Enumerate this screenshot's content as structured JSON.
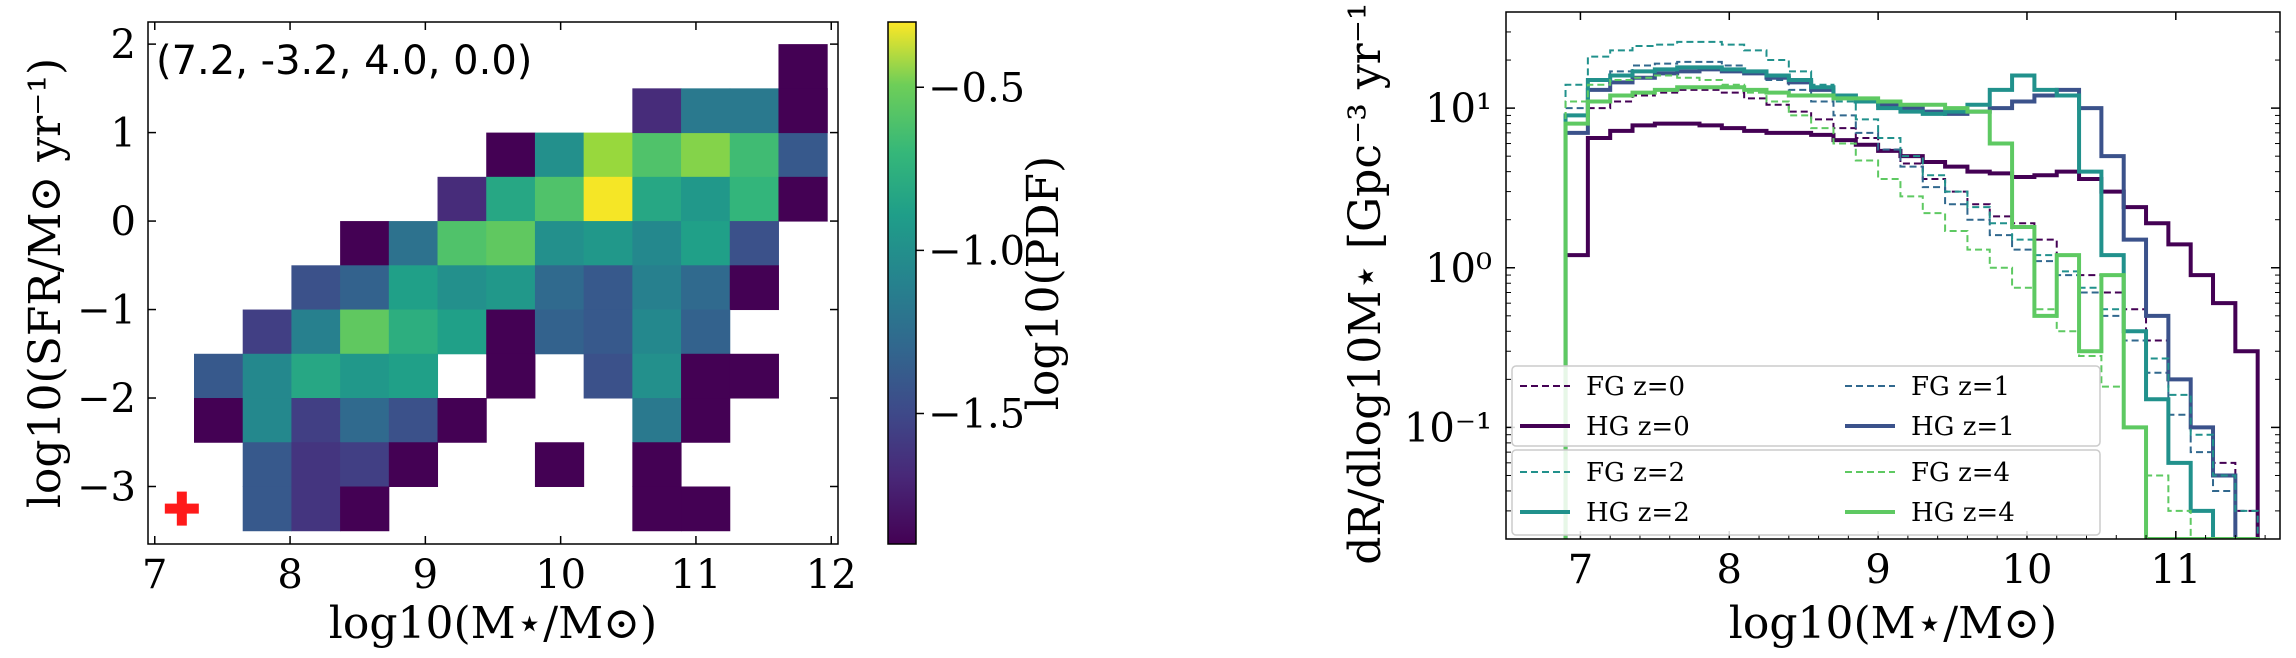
{
  "chart_data": [
    {
      "type": "heatmap",
      "annotation": "(7.2, -3.2, 4.0, 0.0)",
      "xlabel": "log10(M⋆/M⊙)",
      "ylabel": "log10(SFR/M⊙ yr⁻¹)",
      "xlim": [
        6.95,
        12.05
      ],
      "ylim": [
        -3.65,
        2.25
      ],
      "xticks": [
        "7",
        "8",
        "9",
        "10",
        "11",
        "12"
      ],
      "yticks": [
        "−3",
        "−2",
        "−1",
        "0",
        "1",
        "2"
      ],
      "colorbar_label": "log10(PDF)",
      "colorbar_ticks": [
        "−0.5",
        "−1.0",
        "−1.5"
      ],
      "colormap": "viridis",
      "clim": [
        -1.9,
        -0.3
      ],
      "marker": {
        "x": 7.2,
        "y": -3.25,
        "symbol": "plus",
        "color": "#ff1a1a"
      },
      "bin_width": 0.36,
      "bin_height": 0.5,
      "cells": [
        [
          11.79,
          1.75,
          -1.9
        ],
        [
          11.79,
          1.25,
          -1.9
        ],
        [
          9.63,
          0.75,
          -1.9
        ],
        [
          9.99,
          0.75,
          -1.1
        ],
        [
          10.35,
          0.75,
          -0.55
        ],
        [
          10.71,
          0.75,
          -0.75
        ],
        [
          11.07,
          0.75,
          -0.6
        ],
        [
          11.43,
          0.75,
          -0.8
        ],
        [
          11.79,
          0.75,
          -1.45
        ],
        [
          10.71,
          1.25,
          -1.7
        ],
        [
          11.07,
          1.25,
          -1.25
        ],
        [
          11.43,
          1.25,
          -1.25
        ],
        [
          11.79,
          1.25,
          -1.9
        ],
        [
          9.27,
          0.25,
          -1.7
        ],
        [
          9.63,
          0.25,
          -0.95
        ],
        [
          9.99,
          0.25,
          -0.75
        ],
        [
          10.35,
          0.25,
          -0.32
        ],
        [
          10.71,
          0.25,
          -0.95
        ],
        [
          11.07,
          0.25,
          -1.05
        ],
        [
          11.43,
          0.25,
          -0.85
        ],
        [
          11.79,
          0.25,
          -1.9
        ],
        [
          8.55,
          -0.25,
          -1.9
        ],
        [
          8.91,
          -0.25,
          -1.3
        ],
        [
          9.27,
          -0.25,
          -0.75
        ],
        [
          9.63,
          -0.25,
          -0.7
        ],
        [
          9.99,
          -0.25,
          -1.1
        ],
        [
          10.35,
          -0.25,
          -1.05
        ],
        [
          10.71,
          -0.25,
          -1.15
        ],
        [
          11.07,
          -0.25,
          -1.0
        ],
        [
          11.43,
          -0.25,
          -1.5
        ],
        [
          8.19,
          -0.75,
          -1.5
        ],
        [
          8.55,
          -0.75,
          -1.4
        ],
        [
          8.91,
          -0.75,
          -1.0
        ],
        [
          9.27,
          -0.75,
          -1.1
        ],
        [
          9.63,
          -0.75,
          -1.05
        ],
        [
          9.99,
          -0.75,
          -1.35
        ],
        [
          10.35,
          -0.75,
          -1.45
        ],
        [
          10.71,
          -0.75,
          -1.2
        ],
        [
          11.07,
          -0.75,
          -1.35
        ],
        [
          11.43,
          -0.75,
          -1.9
        ],
        [
          7.83,
          -1.25,
          -1.6
        ],
        [
          8.19,
          -1.25,
          -1.2
        ],
        [
          8.55,
          -1.25,
          -0.7
        ],
        [
          8.91,
          -1.25,
          -0.9
        ],
        [
          9.27,
          -1.25,
          -1.0
        ],
        [
          9.63,
          -1.25,
          -1.9
        ],
        [
          9.99,
          -1.25,
          -1.4
        ],
        [
          10.35,
          -1.25,
          -1.45
        ],
        [
          10.71,
          -1.25,
          -1.15
        ],
        [
          11.07,
          -1.25,
          -1.4
        ],
        [
          7.47,
          -1.75,
          -1.45
        ],
        [
          7.83,
          -1.75,
          -1.15
        ],
        [
          8.19,
          -1.75,
          -0.95
        ],
        [
          8.55,
          -1.75,
          -1.05
        ],
        [
          8.91,
          -1.75,
          -1.0
        ],
        [
          9.63,
          -1.75,
          -1.9
        ],
        [
          10.35,
          -1.75,
          -1.5
        ],
        [
          10.71,
          -1.75,
          -1.1
        ],
        [
          11.07,
          -1.75,
          -1.9
        ],
        [
          11.43,
          -1.75,
          -1.9
        ],
        [
          7.47,
          -2.25,
          -1.9
        ],
        [
          7.83,
          -2.25,
          -1.15
        ],
        [
          8.19,
          -2.25,
          -1.6
        ],
        [
          8.55,
          -2.25,
          -1.35
        ],
        [
          8.91,
          -2.25,
          -1.5
        ],
        [
          9.27,
          -2.25,
          -1.9
        ],
        [
          10.71,
          -2.25,
          -1.25
        ],
        [
          11.07,
          -2.25,
          -1.9
        ],
        [
          7.83,
          -2.75,
          -1.45
        ],
        [
          8.19,
          -2.75,
          -1.65
        ],
        [
          8.55,
          -2.75,
          -1.6
        ],
        [
          8.91,
          -2.75,
          -1.9
        ],
        [
          9.99,
          -2.75,
          -1.9
        ],
        [
          10.71,
          -2.75,
          -1.9
        ],
        [
          7.83,
          -3.25,
          -1.45
        ],
        [
          8.19,
          -3.25,
          -1.65
        ],
        [
          8.55,
          -3.25,
          -1.9
        ],
        [
          10.71,
          -3.25,
          -1.9
        ],
        [
          11.07,
          -3.25,
          -1.9
        ]
      ]
    },
    {
      "type": "line",
      "step": true,
      "yscale": "log",
      "xlabel": "log10(M⋆/M⊙)",
      "ylabel": "dR/dlog10M⋆ [Gpc⁻³ yr⁻¹]",
      "xlim": [
        6.5,
        11.7
      ],
      "ylim": [
        0.02,
        40
      ],
      "xticks": [
        "7",
        "8",
        "9",
        "10",
        "11"
      ],
      "yticks": [
        "10⁻¹",
        "10⁰",
        "10¹"
      ],
      "bin_edges": [
        6.9,
        7.05,
        7.2,
        7.35,
        7.5,
        7.65,
        7.8,
        7.95,
        8.1,
        8.25,
        8.4,
        8.55,
        8.7,
        8.85,
        9.0,
        9.15,
        9.3,
        9.45,
        9.6,
        9.75,
        9.9,
        10.05,
        10.2,
        10.35,
        10.5,
        10.65,
        10.8,
        10.95,
        11.1,
        11.25,
        11.4,
        11.55
      ],
      "legend": [
        {
          "label": "FG z=0",
          "style": "dashed"
        },
        {
          "label": "FG z=1",
          "style": "dashed"
        },
        {
          "label": "HG z=0",
          "style": "solid"
        },
        {
          "label": "HG z=1",
          "style": "solid"
        },
        {
          "label": "FG z=2",
          "style": "dashed"
        },
        {
          "label": "FG z=4",
          "style": "dashed"
        },
        {
          "label": "HG z=2",
          "style": "solid"
        },
        {
          "label": "HG z=4",
          "style": "solid"
        }
      ],
      "series": [
        {
          "name": "FG z=0",
          "color": "#440154",
          "style": "dashed",
          "width": 2,
          "values": [
            8,
            10,
            11,
            12,
            12.5,
            13,
            13,
            12.5,
            11.5,
            10.5,
            9.5,
            8.5,
            7.5,
            6.5,
            5.5,
            4.5,
            3.6,
            3.0,
            2.5,
            2.1,
            1.9,
            1.5,
            1.2,
            0.9,
            0.7,
            0.55,
            0.35,
            0.2,
            0.1,
            0.06,
            0.03
          ]
        },
        {
          "name": "HG z=0",
          "color": "#440154",
          "style": "solid",
          "width": 4,
          "values": [
            1.2,
            6.5,
            7.2,
            7.8,
            8.0,
            8.0,
            7.8,
            7.5,
            7.2,
            7.0,
            7.0,
            6.8,
            6.3,
            5.9,
            5.4,
            5.0,
            4.6,
            4.3,
            4.0,
            3.9,
            3.7,
            3.8,
            4.0,
            3.6,
            3.0,
            2.4,
            1.9,
            1.4,
            0.9,
            0.6,
            0.3
          ]
        },
        {
          "name": "FG z=1",
          "color": "#31688e",
          "style": "dashed",
          "width": 2,
          "values": [
            10,
            15,
            17,
            18.5,
            19,
            19.5,
            19.5,
            18.5,
            17,
            15,
            13,
            11,
            9,
            7,
            5.5,
            4.3,
            3.2,
            2.5,
            2.0,
            1.6,
            1.3,
            1.1,
            0.9,
            0.7,
            0.5,
            0.35,
            0.22,
            0.12,
            0.07,
            0.04,
            0.02
          ]
        },
        {
          "name": "HG z=1",
          "color": "#3b528b",
          "style": "solid",
          "width": 4,
          "values": [
            7,
            13,
            14.5,
            15.5,
            16.5,
            17,
            17.5,
            17,
            16.5,
            15.5,
            14.5,
            13,
            12,
            11,
            10.5,
            10,
            9.5,
            9.2,
            9.5,
            10,
            11,
            12,
            13,
            10,
            5,
            1.5,
            0.5,
            0.2,
            0.1,
            0.05,
            0.02
          ]
        },
        {
          "name": "FG z=2",
          "color": "#21918c",
          "style": "dashed",
          "width": 2,
          "values": [
            14,
            21,
            23,
            24.5,
            25,
            26,
            26,
            25,
            23,
            20,
            17,
            14,
            11,
            8.5,
            6.5,
            5,
            3.8,
            3.0,
            2.4,
            1.9,
            1.5,
            1.2,
            0.95,
            0.75,
            0.55,
            0.4,
            0.27,
            0.16,
            0.09,
            0.05,
            0.03
          ]
        },
        {
          "name": "HG z=2",
          "color": "#21918c",
          "style": "solid",
          "width": 4,
          "values": [
            9,
            15,
            16,
            17,
            17.5,
            18,
            18,
            17.5,
            17,
            16,
            15,
            13.5,
            12,
            11,
            10,
            9.5,
            9.2,
            9.5,
            10.5,
            13,
            16,
            13,
            12,
            4,
            1.2,
            0.4,
            0.15,
            0.06,
            0.03,
            0.02,
            0.02
          ]
        },
        {
          "name": "FG z=4",
          "color": "#5ec962",
          "style": "dashed",
          "width": 2,
          "values": [
            11,
            14,
            15,
            15.5,
            16,
            15.5,
            15,
            14,
            12.5,
            11,
            9,
            7.5,
            6,
            4.7,
            3.6,
            2.8,
            2.2,
            1.7,
            1.3,
            1.0,
            0.75,
            0.55,
            0.4,
            0.28,
            0.18,
            0.1,
            0.05,
            0.03,
            0.02,
            0.02,
            0.02
          ]
        },
        {
          "name": "HG z=4",
          "color": "#5ec962",
          "style": "solid",
          "width": 4,
          "values": [
            8,
            11,
            12,
            12.5,
            13,
            13.5,
            13.5,
            13.5,
            13,
            12.5,
            12,
            12,
            11.5,
            11.5,
            11,
            10.5,
            10.5,
            10,
            9.5,
            6,
            1.8,
            0.5,
            1.2,
            0.3,
            0.9,
            0.1,
            0.02,
            0.02,
            0.02,
            0.02,
            0.02
          ]
        }
      ]
    }
  ]
}
